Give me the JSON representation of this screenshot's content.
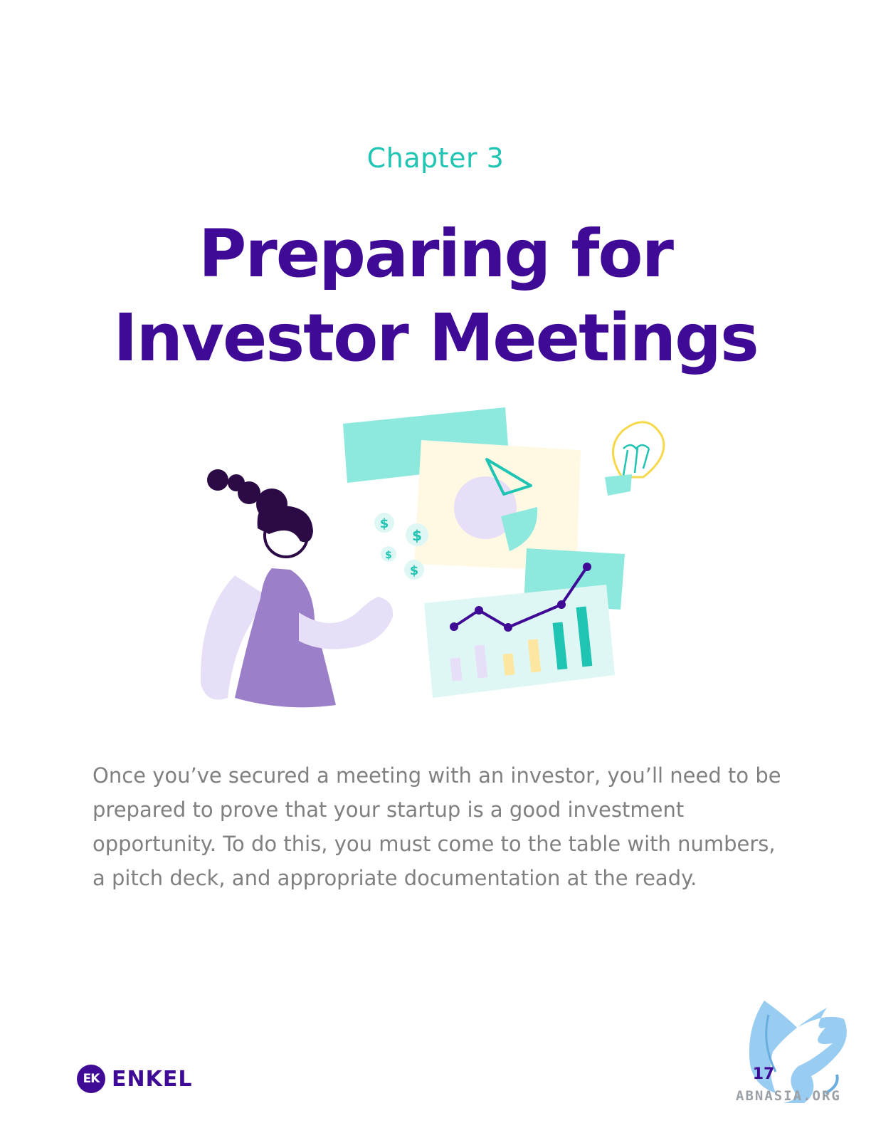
{
  "chapter": "Chapter 3",
  "title": {
    "line1": "Preparing for",
    "line2": "Investor Meetings"
  },
  "illustration": {
    "icons": [
      "woman-presenter-icon",
      "pie-chart-card-icon",
      "line-bar-chart-card-icon",
      "lightbulb-icon",
      "dollar-coin-icon"
    ],
    "coin_symbol": "$"
  },
  "body": "Once you’ve secured a meeting with an investor, you’ll need to be prepared to prove that your startup is a good investment opportunity. To do this, you must come to the table with numbers, a pitch deck, and appropriate documentation at the ready.",
  "footer": {
    "logo_mark": "EK",
    "logo_text": "ENKEL",
    "page_number": "17",
    "watermark": "ABNASIA.ORG"
  },
  "colors": {
    "title": "#3f0b96",
    "chapter": "#1fc4b2",
    "body": "#808080",
    "teal": "#8de8de",
    "lavender": "#e6dff7",
    "purple": "#9b7fc9",
    "dark_purple": "#2b0a45"
  }
}
